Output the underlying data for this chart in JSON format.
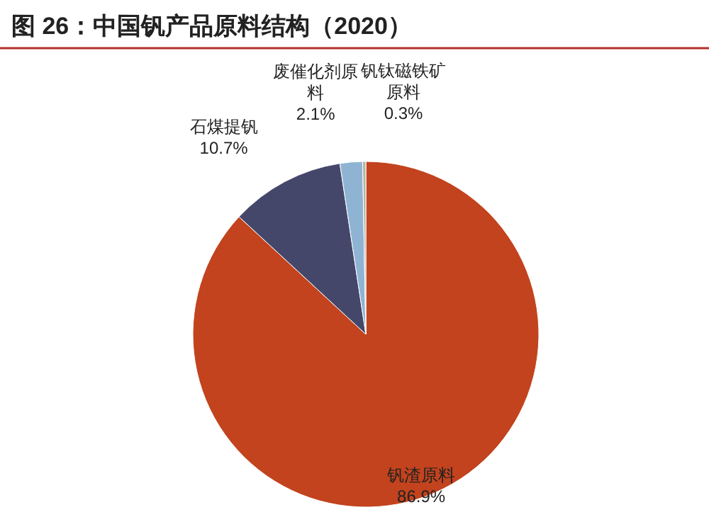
{
  "chart_data": {
    "type": "pie",
    "title": "图 26：中国钒产品原料结构（2020）",
    "categories": [
      "钒渣原料",
      "石煤提钒",
      "废催化剂原料",
      "钒钛磁铁矿原料"
    ],
    "values": [
      86.9,
      10.7,
      2.1,
      0.3
    ],
    "value_labels": [
      "86.9%",
      "10.7%",
      "2.1%",
      "0.3%"
    ],
    "colors": [
      "#c2431d",
      "#45476a",
      "#8fb4d3",
      "#b9b3a8"
    ]
  }
}
